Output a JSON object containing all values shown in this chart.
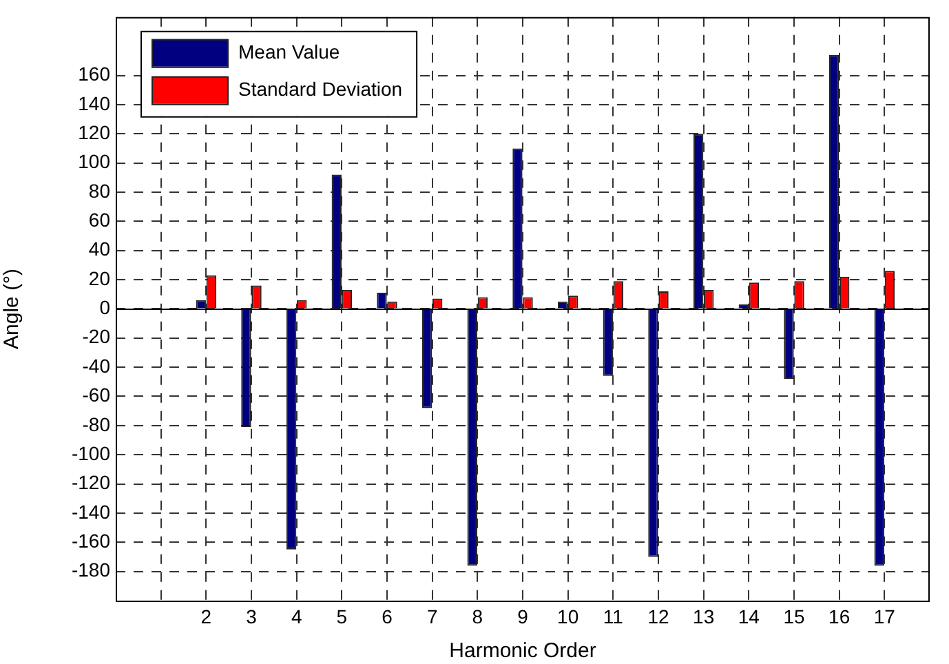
{
  "chart_data": {
    "type": "bar",
    "xlabel": "Harmonic Order",
    "ylabel": "Angle (°)",
    "x": [
      2,
      3,
      4,
      5,
      6,
      7,
      8,
      9,
      10,
      11,
      12,
      13,
      14,
      15,
      16,
      17
    ],
    "xlim": [
      0,
      18
    ],
    "xticks": [
      {
        "value": 1,
        "label": null
      },
      2,
      3,
      4,
      5,
      6,
      7,
      8,
      9,
      10,
      11,
      12,
      13,
      14,
      15,
      16,
      17
    ],
    "ylim": [
      -200,
      200
    ],
    "yticks": [
      -180,
      -160,
      -140,
      -120,
      -100,
      -80,
      -60,
      -40,
      -20,
      0,
      20,
      40,
      60,
      80,
      100,
      120,
      140,
      160
    ],
    "series": [
      {
        "name": "Mean Value",
        "color": "#000080",
        "values": [
          6,
          -81,
          -165,
          92,
          11,
          -68,
          -176,
          110,
          5,
          -46,
          -170,
          120,
          3,
          -48,
          174,
          -176
        ]
      },
      {
        "name": "Standard Deviation",
        "color": "#ff0000",
        "values": [
          23,
          16,
          6,
          13,
          5,
          7,
          8,
          8,
          9,
          19,
          12,
          13,
          18,
          19,
          22,
          26
        ]
      }
    ],
    "grid": true,
    "legend": "top left"
  }
}
